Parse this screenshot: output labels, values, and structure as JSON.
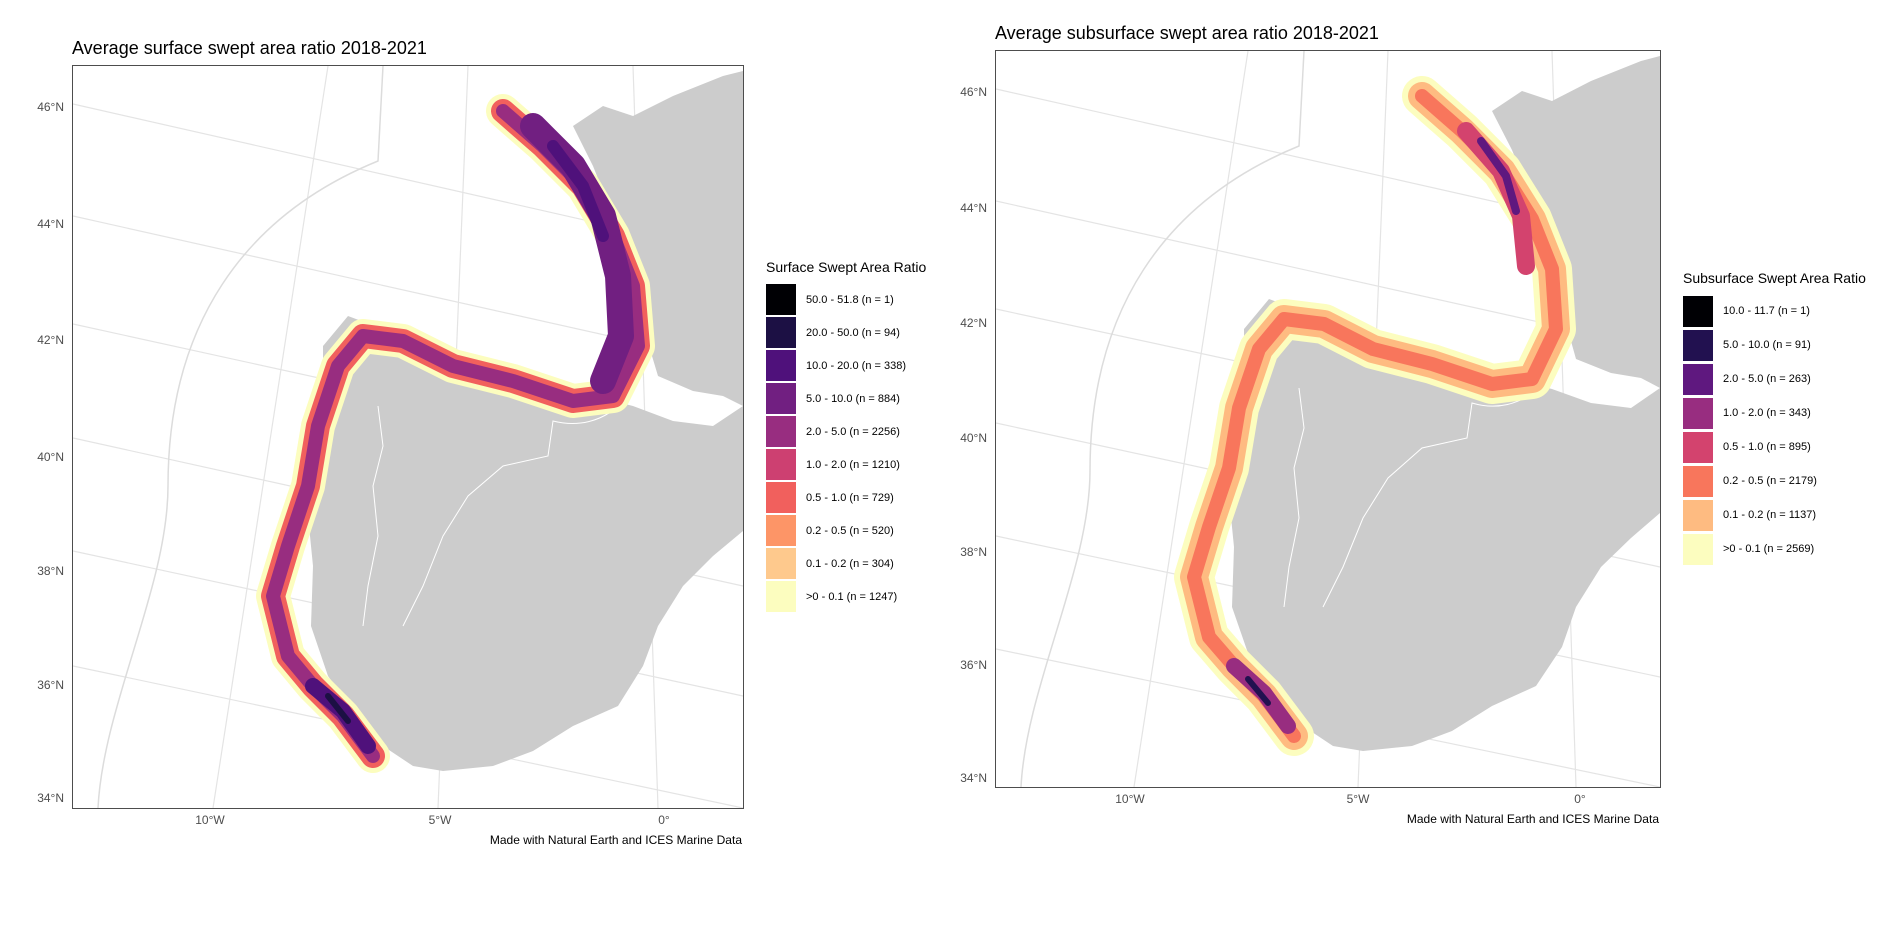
{
  "maps": [
    {
      "title": "Average surface swept area ratio 2018-2021",
      "lat_ticks": [
        "46°N",
        "44°N",
        "42°N",
        "40°N",
        "38°N",
        "36°N",
        "34°N"
      ],
      "lon_ticks": [
        "10°W",
        "5°W",
        "0°"
      ],
      "credit": "Made with Natural Earth and ICES Marine Data",
      "legend": {
        "title": "Surface Swept Area Ratio",
        "items": [
          {
            "label": "50.0 - 51.8 (n = 1)",
            "color": "#000004"
          },
          {
            "label": "20.0 - 50.0 (n = 94)",
            "color": "#1c1044"
          },
          {
            "label": "10.0 - 20.0 (n = 338)",
            "color": "#4f117b"
          },
          {
            "label": "5.0 - 10.0 (n = 884)",
            "color": "#711f81"
          },
          {
            "label": "2.0 - 5.0 (n = 2256)",
            "color": "#982d80"
          },
          {
            "label": "1.0 - 2.0 (n = 1210)",
            "color": "#cd4071"
          },
          {
            "label": "0.5 - 1.0 (n = 729)",
            "color": "#f1605d"
          },
          {
            "label": "0.2 - 0.5 (n = 520)",
            "color": "#fd9567"
          },
          {
            "label": "0.1 - 0.2 (n = 304)",
            "color": "#fec98d"
          },
          {
            "label": ">0 - 0.1 (n = 1247)",
            "color": "#fcfdbf"
          }
        ]
      }
    },
    {
      "title": "Average subsurface swept area ratio 2018-2021",
      "lat_ticks": [
        "46°N",
        "44°N",
        "42°N",
        "40°N",
        "38°N",
        "36°N",
        "34°N"
      ],
      "lon_ticks": [
        "10°W",
        "5°W",
        "0°"
      ],
      "credit": "Made with Natural Earth and ICES Marine Data",
      "legend": {
        "title": "Subsurface Swept Area Ratio",
        "items": [
          {
            "label": "10.0 - 11.7 (n = 1)",
            "color": "#000004"
          },
          {
            "label": "5.0 - 10.0 (n = 91)",
            "color": "#221150"
          },
          {
            "label": "2.0 - 5.0 (n = 263)",
            "color": "#5f187f"
          },
          {
            "label": "1.0 - 2.0 (n = 343)",
            "color": "#982d80"
          },
          {
            "label": "0.5 - 1.0 (n = 895)",
            "color": "#d3436e"
          },
          {
            "label": "0.2 - 0.5 (n = 2179)",
            "color": "#f8765c"
          },
          {
            "label": "0.1 - 0.2 (n = 1137)",
            "color": "#febb81"
          },
          {
            "label": ">0 - 0.1 (n = 2569)",
            "color": "#fcfdbf"
          }
        ]
      }
    }
  ]
}
